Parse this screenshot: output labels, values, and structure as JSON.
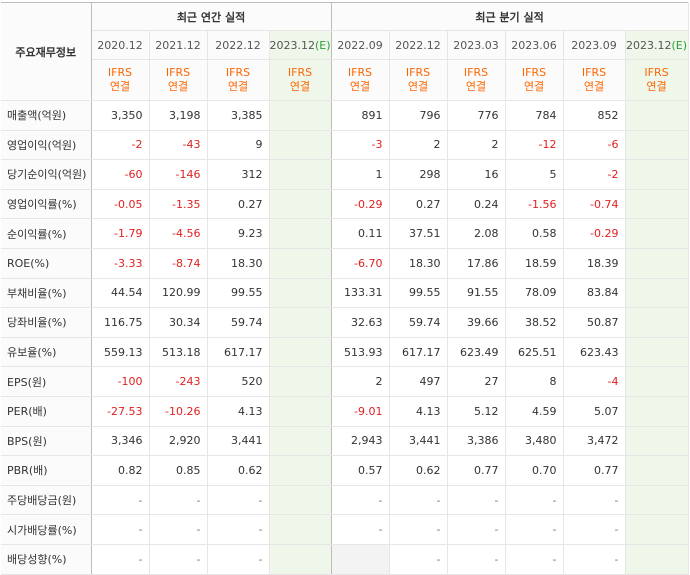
{
  "table": {
    "corner_label": "주요재무정보",
    "annual_group_label": "최근 연간 실적",
    "quarter_group_label": "최근 분기 실적",
    "annual_periods": [
      "2020.12",
      "2021.12",
      "2022.12",
      "2023.12"
    ],
    "annual_estimate_mark": "(E)",
    "quarter_periods": [
      "2022.09",
      "2022.12",
      "2023.03",
      "2023.06",
      "2023.09",
      "2023.12"
    ],
    "quarter_estimate_mark": "(E)",
    "basis_line1": "IFRS",
    "basis_line2": "연결",
    "rows": [
      {
        "label": "매출액(억원)",
        "values": [
          "3,350",
          "3,198",
          "3,385",
          "",
          "891",
          "796",
          "776",
          "784",
          "852",
          ""
        ]
      },
      {
        "label": "영업이익(억원)",
        "values": [
          "-2",
          "-43",
          "9",
          "",
          "-3",
          "2",
          "2",
          "-12",
          "-6",
          ""
        ]
      },
      {
        "label": "당기순이익(억원)",
        "values": [
          "-60",
          "-146",
          "312",
          "",
          "1",
          "298",
          "16",
          "5",
          "-2",
          ""
        ]
      },
      {
        "label": "영업이익률(%)",
        "values": [
          "-0.05",
          "-1.35",
          "0.27",
          "",
          "-0.29",
          "0.27",
          "0.24",
          "-1.56",
          "-0.74",
          ""
        ]
      },
      {
        "label": "순이익률(%)",
        "values": [
          "-1.79",
          "-4.56",
          "9.23",
          "",
          "0.11",
          "37.51",
          "2.08",
          "0.58",
          "-0.29",
          ""
        ]
      },
      {
        "label": "ROE(%)",
        "values": [
          "-3.33",
          "-8.74",
          "18.30",
          "",
          "-6.70",
          "18.30",
          "17.86",
          "18.59",
          "18.39",
          ""
        ]
      },
      {
        "label": "부채비율(%)",
        "values": [
          "44.54",
          "120.99",
          "99.55",
          "",
          "133.31",
          "99.55",
          "91.55",
          "78.09",
          "83.84",
          ""
        ]
      },
      {
        "label": "당좌비율(%)",
        "values": [
          "116.75",
          "30.34",
          "59.74",
          "",
          "32.63",
          "59.74",
          "39.66",
          "38.52",
          "50.87",
          ""
        ]
      },
      {
        "label": "유보율(%)",
        "values": [
          "559.13",
          "513.18",
          "617.17",
          "",
          "513.93",
          "617.17",
          "623.49",
          "625.51",
          "623.43",
          ""
        ]
      },
      {
        "label": "EPS(원)",
        "values": [
          "-100",
          "-243",
          "520",
          "",
          "2",
          "497",
          "27",
          "8",
          "-4",
          ""
        ]
      },
      {
        "label": "PER(배)",
        "values": [
          "-27.53",
          "-10.26",
          "4.13",
          "",
          "-9.01",
          "4.13",
          "5.12",
          "4.59",
          "5.07",
          ""
        ]
      },
      {
        "label": "BPS(원)",
        "values": [
          "3,346",
          "2,920",
          "3,441",
          "",
          "2,943",
          "3,441",
          "3,386",
          "3,480",
          "3,472",
          ""
        ]
      },
      {
        "label": "PBR(배)",
        "values": [
          "0.82",
          "0.85",
          "0.62",
          "",
          "0.57",
          "0.62",
          "0.77",
          "0.70",
          "0.77",
          ""
        ]
      },
      {
        "label": "주당배당금(원)",
        "values": [
          "-",
          "-",
          "-",
          "",
          "-",
          "-",
          "-",
          "-",
          "-",
          ""
        ]
      },
      {
        "label": "시가배당률(%)",
        "values": [
          "-",
          "-",
          "-",
          "",
          "-",
          "-",
          "-",
          "-",
          "-",
          ""
        ]
      },
      {
        "label": "배당성향(%)",
        "values": [
          "-",
          "-",
          "-",
          "",
          "",
          "-",
          "-",
          "-",
          "-",
          ""
        ]
      }
    ]
  },
  "colors": {
    "negative": "#e02020",
    "basis_text": "#ff6600",
    "estimate_bg": "#eef7ea",
    "estimate_mark": "#2a9d3a"
  }
}
